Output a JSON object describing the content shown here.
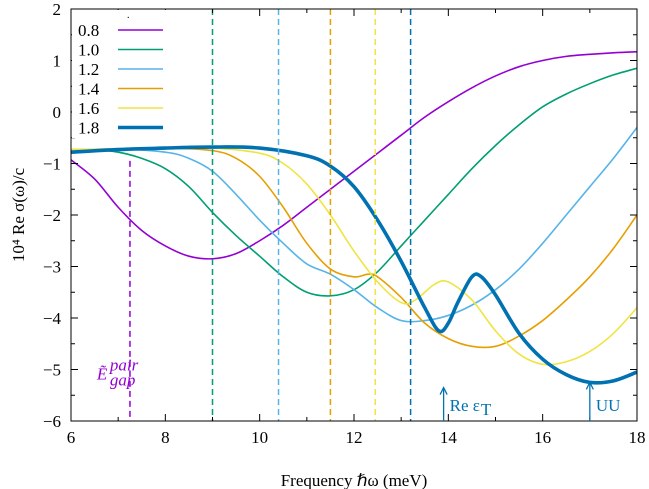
{
  "chart_data": {
    "type": "line",
    "xlabel": "Frequency ℏω (meV)",
    "ylabel": "10⁴ Re σ(ω)/c",
    "xlim": [
      6,
      18
    ],
    "ylim": [
      -6,
      2
    ],
    "x_ticks": [
      "6",
      "8",
      "10",
      "12",
      "14",
      "16",
      "18"
    ],
    "y_ticks": [
      "−6",
      "−5",
      "−4",
      "−3",
      "−2",
      "−1",
      "0",
      "1",
      "2"
    ],
    "x_tick_values": [
      6,
      8,
      10,
      12,
      14,
      16,
      18
    ],
    "y_tick_values": [
      -6,
      -5,
      -4,
      -3,
      -2,
      -1,
      0,
      1,
      2
    ],
    "legend_position": "top-left",
    "grid": false,
    "series": [
      {
        "name": "0.8",
        "color": "#9400d3",
        "thick": false,
        "points": [
          [
            6,
            -0.93
          ],
          [
            6.5,
            -1.3
          ],
          [
            7,
            -1.85
          ],
          [
            7.5,
            -2.3
          ],
          [
            8,
            -2.6
          ],
          [
            8.5,
            -2.8
          ],
          [
            9,
            -2.85
          ],
          [
            9.5,
            -2.75
          ],
          [
            10,
            -2.5
          ],
          [
            10.5,
            -2.2
          ],
          [
            11,
            -1.85
          ],
          [
            11.5,
            -1.5
          ],
          [
            12,
            -1.15
          ],
          [
            12.5,
            -0.8
          ],
          [
            13,
            -0.45
          ],
          [
            13.5,
            -0.1
          ],
          [
            14,
            0.2
          ],
          [
            14.5,
            0.47
          ],
          [
            15,
            0.7
          ],
          [
            15.5,
            0.88
          ],
          [
            16,
            1.0
          ],
          [
            16.5,
            1.08
          ],
          [
            17,
            1.12
          ],
          [
            17.5,
            1.15
          ],
          [
            18,
            1.17
          ]
        ]
      },
      {
        "name": "1.0",
        "color": "#009e73",
        "thick": false,
        "points": [
          [
            6,
            -0.76
          ],
          [
            6.5,
            -0.74
          ],
          [
            7,
            -0.78
          ],
          [
            7.5,
            -0.9
          ],
          [
            8,
            -1.1
          ],
          [
            8.5,
            -1.45
          ],
          [
            9,
            -1.95
          ],
          [
            9.5,
            -2.4
          ],
          [
            10,
            -2.8
          ],
          [
            10.5,
            -3.2
          ],
          [
            11,
            -3.5
          ],
          [
            11.5,
            -3.57
          ],
          [
            12,
            -3.45
          ],
          [
            12.5,
            -3.1
          ],
          [
            13,
            -2.6
          ],
          [
            13.5,
            -2.1
          ],
          [
            14,
            -1.6
          ],
          [
            14.5,
            -1.1
          ],
          [
            15,
            -0.65
          ],
          [
            15.5,
            -0.25
          ],
          [
            16,
            0.1
          ],
          [
            16.5,
            0.35
          ],
          [
            17,
            0.55
          ],
          [
            17.5,
            0.72
          ],
          [
            18,
            0.85
          ]
        ]
      },
      {
        "name": "1.2",
        "color": "#56b4e9",
        "thick": false,
        "points": [
          [
            6,
            -0.74
          ],
          [
            7,
            -0.72
          ],
          [
            8,
            -0.78
          ],
          [
            8.5,
            -0.9
          ],
          [
            9,
            -1.15
          ],
          [
            9.5,
            -1.6
          ],
          [
            10,
            -2.1
          ],
          [
            10.5,
            -2.55
          ],
          [
            11,
            -2.95
          ],
          [
            11.5,
            -3.15
          ],
          [
            12,
            -3.45
          ],
          [
            12.5,
            -3.8
          ],
          [
            13,
            -4.05
          ],
          [
            13.5,
            -4.05
          ],
          [
            14,
            -3.95
          ],
          [
            14.5,
            -3.75
          ],
          [
            15,
            -3.45
          ],
          [
            15.5,
            -3.05
          ],
          [
            16,
            -2.55
          ],
          [
            16.5,
            -2.0
          ],
          [
            17,
            -1.45
          ],
          [
            17.5,
            -0.9
          ],
          [
            18,
            -0.3
          ]
        ]
      },
      {
        "name": "1.4",
        "color": "#e69f00",
        "thick": false,
        "points": [
          [
            6,
            -0.73
          ],
          [
            7,
            -0.72
          ],
          [
            8,
            -0.7
          ],
          [
            9,
            -0.75
          ],
          [
            9.5,
            -0.9
          ],
          [
            10,
            -1.25
          ],
          [
            10.5,
            -1.85
          ],
          [
            11,
            -2.55
          ],
          [
            11.5,
            -3.05
          ],
          [
            12,
            -3.2
          ],
          [
            12.3,
            -3.15
          ],
          [
            12.5,
            -3.2
          ],
          [
            13,
            -3.6
          ],
          [
            13.5,
            -4.1
          ],
          [
            14,
            -4.4
          ],
          [
            14.5,
            -4.55
          ],
          [
            15,
            -4.55
          ],
          [
            15.5,
            -4.35
          ],
          [
            16,
            -4.05
          ],
          [
            16.5,
            -3.65
          ],
          [
            17,
            -3.2
          ],
          [
            17.5,
            -2.65
          ],
          [
            18,
            -2.0
          ]
        ]
      },
      {
        "name": "1.6",
        "color": "#f0e442",
        "thick": false,
        "points": [
          [
            6,
            -0.73
          ],
          [
            8,
            -0.7
          ],
          [
            9,
            -0.7
          ],
          [
            10,
            -0.8
          ],
          [
            10.5,
            -1.0
          ],
          [
            11,
            -1.4
          ],
          [
            11.5,
            -2.0
          ],
          [
            12,
            -2.7
          ],
          [
            12.5,
            -3.3
          ],
          [
            13,
            -3.7
          ],
          [
            13.3,
            -3.65
          ],
          [
            13.7,
            -3.35
          ],
          [
            14,
            -3.3
          ],
          [
            14.5,
            -3.65
          ],
          [
            15,
            -4.25
          ],
          [
            15.5,
            -4.7
          ],
          [
            16,
            -4.9
          ],
          [
            16.5,
            -4.85
          ],
          [
            17,
            -4.65
          ],
          [
            17.5,
            -4.3
          ],
          [
            18,
            -3.8
          ]
        ]
      },
      {
        "name": "1.8",
        "color": "#0072b2",
        "thick": true,
        "points": [
          [
            6,
            -0.78
          ],
          [
            7,
            -0.73
          ],
          [
            8,
            -0.7
          ],
          [
            9,
            -0.68
          ],
          [
            10,
            -0.7
          ],
          [
            11,
            -0.85
          ],
          [
            11.5,
            -1.05
          ],
          [
            12,
            -1.45
          ],
          [
            12.5,
            -2.1
          ],
          [
            13,
            -2.9
          ],
          [
            13.5,
            -3.8
          ],
          [
            13.8,
            -4.25
          ],
          [
            14,
            -4.1
          ],
          [
            14.2,
            -3.7
          ],
          [
            14.5,
            -3.2
          ],
          [
            14.7,
            -3.2
          ],
          [
            15,
            -3.55
          ],
          [
            15.5,
            -4.3
          ],
          [
            16,
            -4.8
          ],
          [
            16.5,
            -5.1
          ],
          [
            17,
            -5.25
          ],
          [
            17.5,
            -5.22
          ],
          [
            18,
            -5.05
          ]
        ]
      }
    ],
    "vlines": [
      {
        "x": 7.25,
        "color": "#9400d3",
        "y_top": -0.95
      },
      {
        "x": 9.0,
        "color": "#009e73",
        "y_top": 2
      },
      {
        "x": 10.4,
        "color": "#56b4e9",
        "y_top": 2
      },
      {
        "x": 11.5,
        "color": "#e69f00",
        "y_top": 2
      },
      {
        "x": 12.45,
        "color": "#f0e442",
        "y_top": 2
      },
      {
        "x": 13.2,
        "color": "#0072b2",
        "y_top": 2
      }
    ],
    "annotations": {
      "gap_label_main": "Ẽ",
      "gap_label_sup": "pair",
      "gap_label_sub": "gap",
      "gap_label_color": "#9400d3",
      "gap_label_x": 7.1,
      "gap_label_y": -5.0,
      "arrows": [
        {
          "label": "Re ε_T",
          "label_main": "Re ε",
          "label_sub": "T",
          "x": 13.9,
          "color": "#0072b2",
          "y_tip": -5.35
        },
        {
          "label": "UU",
          "label_main": "UU",
          "label_sub": "",
          "x": 17.0,
          "color": "#0072b2",
          "y_tip": -5.25
        }
      ]
    },
    "legend_marker": "."
  }
}
